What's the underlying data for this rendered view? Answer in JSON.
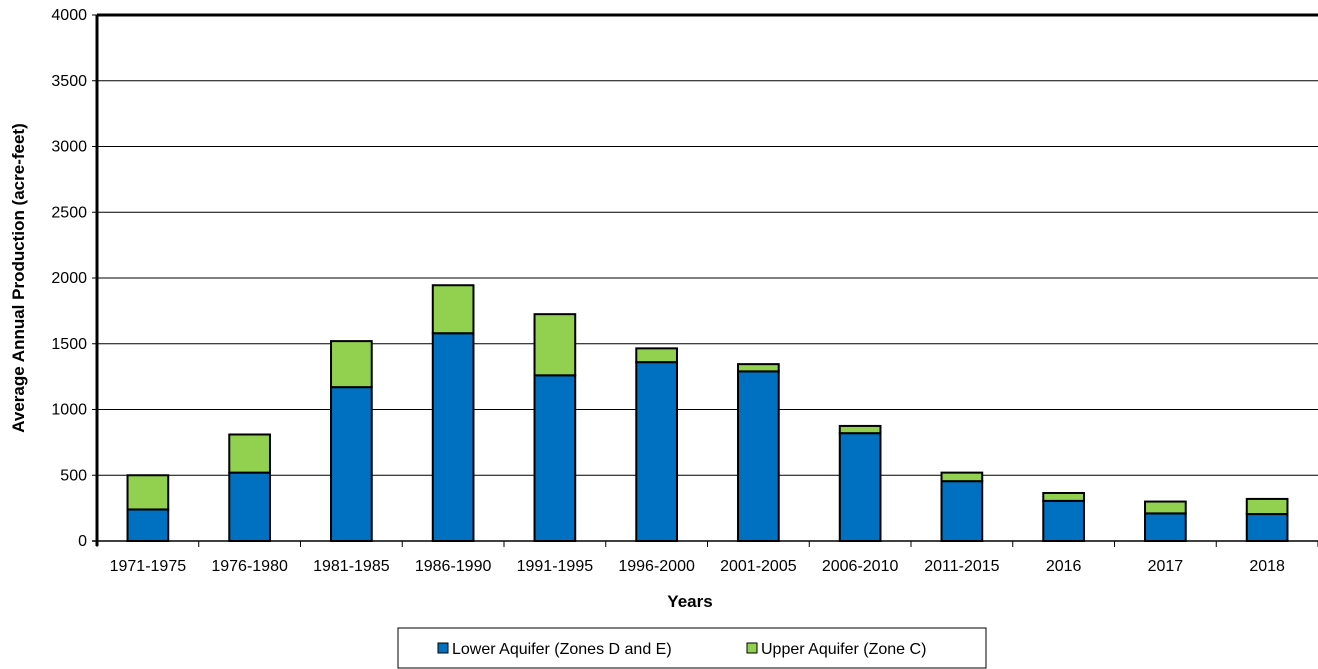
{
  "chart_data": {
    "type": "bar",
    "stacked": true,
    "title": "",
    "xlabel": "Years",
    "ylabel": "Average Annual Production (acre-feet)",
    "ylim": [
      0,
      4000
    ],
    "yticks": [
      0,
      500,
      1000,
      1500,
      2000,
      2500,
      3000,
      3500,
      4000
    ],
    "grid": true,
    "legend_position": "bottom",
    "categories": [
      "1971-1975",
      "1976-1980",
      "1981-1985",
      "1986-1990",
      "1991-1995",
      "1996-2000",
      "2001-2005",
      "2006-2010",
      "2011-2015",
      "2016",
      "2017",
      "2018"
    ],
    "series": [
      {
        "name": "Lower Aquifer (Zones D and E)",
        "color": "#0070C0",
        "values": [
          240,
          520,
          1170,
          1580,
          1260,
          1360,
          1290,
          820,
          455,
          305,
          210,
          205
        ]
      },
      {
        "name": "Upper Aquifer (Zone C)",
        "color": "#92D050",
        "values": [
          260,
          290,
          350,
          365,
          465,
          105,
          55,
          55,
          65,
          60,
          90,
          115
        ]
      }
    ]
  }
}
